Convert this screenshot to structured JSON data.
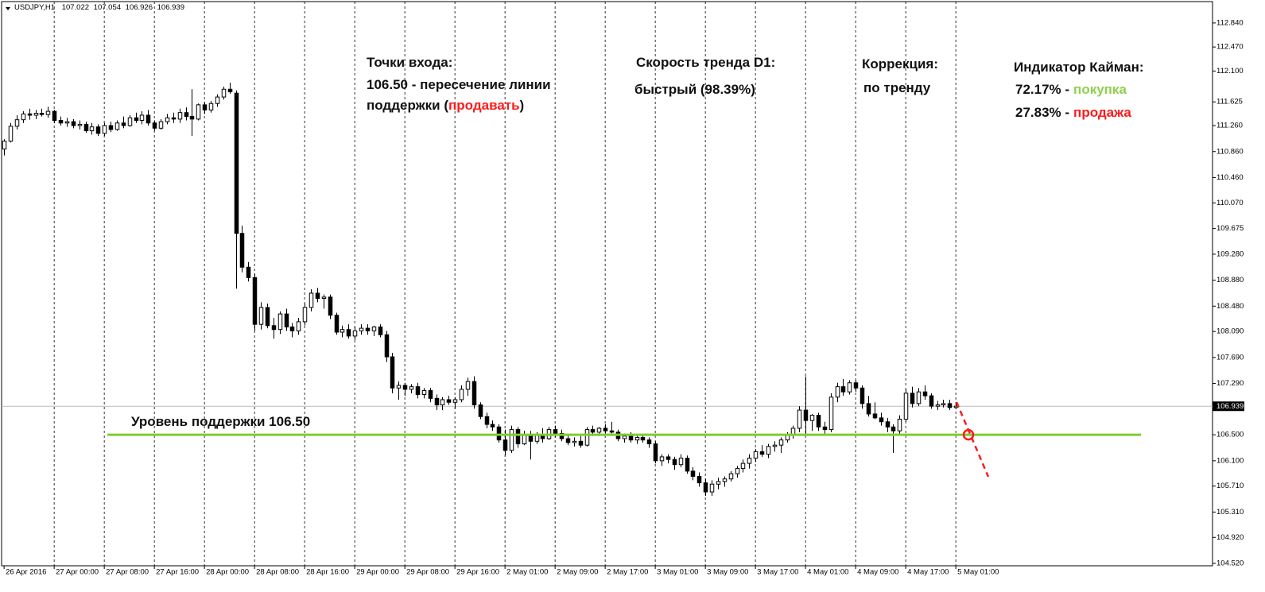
{
  "chart_data": {
    "type": "candlestick",
    "symbol": "USDJPY,H1",
    "header_prices": [
      "107.022",
      "107.054",
      "106.926",
      "106.939"
    ],
    "xlim": [
      -0.4,
      193
    ],
    "ylim": [
      104.483,
      113.169
    ],
    "yticks": [
      {
        "value": 112.84,
        "label": "112.840"
      },
      {
        "value": 112.47,
        "label": "112.470"
      },
      {
        "value": 112.1,
        "label": "112.100"
      },
      {
        "value": 111.625,
        "label": "111.625"
      },
      {
        "value": 111.26,
        "label": "111.260"
      },
      {
        "value": 110.86,
        "label": "110.860"
      },
      {
        "value": 110.46,
        "label": "110.460"
      },
      {
        "value": 110.07,
        "label": "110.070"
      },
      {
        "value": 109.675,
        "label": "109.675"
      },
      {
        "value": 109.28,
        "label": "109.280"
      },
      {
        "value": 108.88,
        "label": "108.880"
      },
      {
        "value": 108.48,
        "label": "108.480"
      },
      {
        "value": 108.09,
        "label": "108.090"
      },
      {
        "value": 107.69,
        "label": "107.690"
      },
      {
        "value": 107.29,
        "label": "107.290"
      },
      {
        "value": 106.5,
        "label": "106.500"
      },
      {
        "value": 106.1,
        "label": "106.100"
      },
      {
        "value": 105.71,
        "label": "105.710"
      },
      {
        "value": 105.31,
        "label": "105.310"
      },
      {
        "value": 104.92,
        "label": "104.920"
      },
      {
        "value": 104.52,
        "label": "104.520"
      }
    ],
    "xticks": [
      {
        "value": 0,
        "label": "26 Apr 2016"
      },
      {
        "value": 8,
        "label": "27 Apr 00:00"
      },
      {
        "value": 16,
        "label": "27 Apr 08:00"
      },
      {
        "value": 24,
        "label": "27 Apr 16:00"
      },
      {
        "value": 32,
        "label": "28 Apr 00:00"
      },
      {
        "value": 40,
        "label": "28 Apr 08:00"
      },
      {
        "value": 48,
        "label": "28 Apr 16:00"
      },
      {
        "value": 56,
        "label": "29 Apr 00:00"
      },
      {
        "value": 64,
        "label": "29 Apr 08:00"
      },
      {
        "value": 72,
        "label": "29 Apr 16:00"
      },
      {
        "value": 80,
        "label": "2 May 01:00"
      },
      {
        "value": 88,
        "label": "2 May 09:00"
      },
      {
        "value": 96,
        "label": "2 May 17:00"
      },
      {
        "value": 104,
        "label": "3 May 01:00"
      },
      {
        "value": 112,
        "label": "3 May 09:00"
      },
      {
        "value": 120,
        "label": "3 May 17:00"
      },
      {
        "value": 128,
        "label": "4 May 01:00"
      },
      {
        "value": 136,
        "label": "4 May 09:00"
      },
      {
        "value": 144,
        "label": "4 May 17:00"
      },
      {
        "value": 152,
        "label": "5 May 01:00"
      }
    ],
    "last_price": {
      "value": 106.939,
      "label": "106.939"
    },
    "support": {
      "value": 106.5,
      "label": "Уровень поддержки 106.50",
      "color": "#7fcc33"
    },
    "candles": [
      [
        110.9,
        111.05,
        110.8,
        111.02
      ],
      [
        111.02,
        111.3,
        111.0,
        111.25
      ],
      [
        111.25,
        111.42,
        111.2,
        111.35
      ],
      [
        111.35,
        111.48,
        111.3,
        111.44
      ],
      [
        111.44,
        111.52,
        111.35,
        111.42
      ],
      [
        111.42,
        111.5,
        111.36,
        111.45
      ],
      [
        111.45,
        111.52,
        111.4,
        111.43
      ],
      [
        111.43,
        111.55,
        111.38,
        111.48
      ],
      [
        111.48,
        111.5,
        111.3,
        111.34
      ],
      [
        111.34,
        111.4,
        111.26,
        111.3
      ],
      [
        111.3,
        111.38,
        111.24,
        111.32
      ],
      [
        111.32,
        111.36,
        111.22,
        111.26
      ],
      [
        111.26,
        111.34,
        111.2,
        111.28
      ],
      [
        111.28,
        111.32,
        111.15,
        111.18
      ],
      [
        111.18,
        111.3,
        111.12,
        111.24
      ],
      [
        111.24,
        111.28,
        111.1,
        111.14
      ],
      [
        111.14,
        111.3,
        111.1,
        111.26
      ],
      [
        111.26,
        111.32,
        111.16,
        111.2
      ],
      [
        111.2,
        111.34,
        111.18,
        111.3
      ],
      [
        111.3,
        111.4,
        111.22,
        111.26
      ],
      [
        111.26,
        111.42,
        111.24,
        111.38
      ],
      [
        111.38,
        111.46,
        111.3,
        111.34
      ],
      [
        111.34,
        111.48,
        111.28,
        111.42
      ],
      [
        111.42,
        111.5,
        111.26,
        111.3
      ],
      [
        111.3,
        111.34,
        111.18,
        111.22
      ],
      [
        111.22,
        111.36,
        111.2,
        111.32
      ],
      [
        111.32,
        111.44,
        111.28,
        111.38
      ],
      [
        111.38,
        111.46,
        111.3,
        111.36
      ],
      [
        111.36,
        111.52,
        111.3,
        111.46
      ],
      [
        111.46,
        111.54,
        111.34,
        111.4
      ],
      [
        111.4,
        111.82,
        111.1,
        111.36
      ],
      [
        111.36,
        111.6,
        111.34,
        111.58
      ],
      [
        111.58,
        111.62,
        111.44,
        111.5
      ],
      [
        111.5,
        111.64,
        111.46,
        111.6
      ],
      [
        111.6,
        111.74,
        111.55,
        111.7
      ],
      [
        111.7,
        111.86,
        111.66,
        111.82
      ],
      [
        111.82,
        111.92,
        111.75,
        111.78
      ],
      [
        111.76,
        111.8,
        108.75,
        109.6
      ],
      [
        109.6,
        109.72,
        109.0,
        109.08
      ],
      [
        109.08,
        109.16,
        108.86,
        108.92
      ],
      [
        108.92,
        108.98,
        108.1,
        108.2
      ],
      [
        108.2,
        108.54,
        108.12,
        108.46
      ],
      [
        108.46,
        108.52,
        108.14,
        108.18
      ],
      [
        108.18,
        108.3,
        107.98,
        108.12
      ],
      [
        108.12,
        108.4,
        108.05,
        108.36
      ],
      [
        108.36,
        108.44,
        108.1,
        108.16
      ],
      [
        108.16,
        108.22,
        108.0,
        108.1
      ],
      [
        108.1,
        108.3,
        108.04,
        108.24
      ],
      [
        108.24,
        108.52,
        108.18,
        108.46
      ],
      [
        108.46,
        108.74,
        108.4,
        108.68
      ],
      [
        108.68,
        108.76,
        108.54,
        108.6
      ],
      [
        108.6,
        108.66,
        108.44,
        108.62
      ],
      [
        108.62,
        108.66,
        108.28,
        108.34
      ],
      [
        108.34,
        108.38,
        108.04,
        108.08
      ],
      [
        108.08,
        108.18,
        108.0,
        108.12
      ],
      [
        108.12,
        108.2,
        107.98,
        108.02
      ],
      [
        108.02,
        108.16,
        107.96,
        108.1
      ],
      [
        108.1,
        108.2,
        108.04,
        108.14
      ],
      [
        108.14,
        108.2,
        108.04,
        108.1
      ],
      [
        108.1,
        108.18,
        108.02,
        108.16
      ],
      [
        108.16,
        108.2,
        108.0,
        108.04
      ],
      [
        108.04,
        108.1,
        107.62,
        107.7
      ],
      [
        107.7,
        107.76,
        107.14,
        107.22
      ],
      [
        107.22,
        107.32,
        107.04,
        107.26
      ],
      [
        107.26,
        107.3,
        107.1,
        107.2
      ],
      [
        107.2,
        107.28,
        107.14,
        107.24
      ],
      [
        107.24,
        107.3,
        107.06,
        107.12
      ],
      [
        107.12,
        107.22,
        107.06,
        107.18
      ],
      [
        107.18,
        107.22,
        107.0,
        107.06
      ],
      [
        107.06,
        107.12,
        106.88,
        106.96
      ],
      [
        106.96,
        107.08,
        106.88,
        107.04
      ],
      [
        107.04,
        107.1,
        106.96,
        107.0
      ],
      [
        107.0,
        107.08,
        106.9,
        107.04
      ],
      [
        107.04,
        107.26,
        107.0,
        107.2
      ],
      [
        107.2,
        107.38,
        107.1,
        107.32
      ],
      [
        107.32,
        107.4,
        106.9,
        106.96
      ],
      [
        106.96,
        107.0,
        106.74,
        106.78
      ],
      [
        106.78,
        106.84,
        106.6,
        106.66
      ],
      [
        106.66,
        106.72,
        106.56,
        106.62
      ],
      [
        106.62,
        106.66,
        106.38,
        106.42
      ],
      [
        106.42,
        106.58,
        106.18,
        106.26
      ],
      [
        106.26,
        106.64,
        106.22,
        106.58
      ],
      [
        106.58,
        106.62,
        106.3,
        106.36
      ],
      [
        106.36,
        106.56,
        106.34,
        106.5
      ],
      [
        106.5,
        106.56,
        106.12,
        106.4
      ],
      [
        106.4,
        106.54,
        106.36,
        106.5
      ],
      [
        106.5,
        106.6,
        106.38,
        106.44
      ],
      [
        106.44,
        106.62,
        106.42,
        106.58
      ],
      [
        106.58,
        106.64,
        106.46,
        106.52
      ],
      [
        106.52,
        106.58,
        106.4,
        106.44
      ],
      [
        106.44,
        106.5,
        106.34,
        106.38
      ],
      [
        106.38,
        106.46,
        106.32,
        106.4
      ],
      [
        106.4,
        106.48,
        106.3,
        106.34
      ],
      [
        106.34,
        106.62,
        106.32,
        106.58
      ],
      [
        106.58,
        106.64,
        106.48,
        106.54
      ],
      [
        106.54,
        106.62,
        106.48,
        106.6
      ],
      [
        106.6,
        106.66,
        106.5,
        106.56
      ],
      [
        106.56,
        106.7,
        106.52,
        106.54
      ],
      [
        106.54,
        106.58,
        106.4,
        106.44
      ],
      [
        106.44,
        106.52,
        106.38,
        106.48
      ],
      [
        106.48,
        106.54,
        106.38,
        106.42
      ],
      [
        106.42,
        106.5,
        106.36,
        106.46
      ],
      [
        106.46,
        106.5,
        106.38,
        106.42
      ],
      [
        106.42,
        106.46,
        106.3,
        106.36
      ],
      [
        106.36,
        106.4,
        106.06,
        106.1
      ],
      [
        106.1,
        106.2,
        106.02,
        106.16
      ],
      [
        106.16,
        106.2,
        106.06,
        106.12
      ],
      [
        106.12,
        106.16,
        105.96,
        106.04
      ],
      [
        106.04,
        106.2,
        106.0,
        106.14
      ],
      [
        106.14,
        106.18,
        105.9,
        105.94
      ],
      [
        105.94,
        106.0,
        105.8,
        105.86
      ],
      [
        105.86,
        105.92,
        105.7,
        105.76
      ],
      [
        105.76,
        105.82,
        105.56,
        105.62
      ],
      [
        105.62,
        105.8,
        105.56,
        105.74
      ],
      [
        105.74,
        105.84,
        105.66,
        105.78
      ],
      [
        105.78,
        105.86,
        105.7,
        105.82
      ],
      [
        105.82,
        105.94,
        105.78,
        105.9
      ],
      [
        105.9,
        106.02,
        105.84,
        105.98
      ],
      [
        105.98,
        106.12,
        105.92,
        106.06
      ],
      [
        106.06,
        106.2,
        105.98,
        106.14
      ],
      [
        106.14,
        106.28,
        106.08,
        106.24
      ],
      [
        106.24,
        106.34,
        106.16,
        106.2
      ],
      [
        106.2,
        106.36,
        106.14,
        106.32
      ],
      [
        106.32,
        106.4,
        106.24,
        106.34
      ],
      [
        106.34,
        106.46,
        106.22,
        106.42
      ],
      [
        106.42,
        106.54,
        106.38,
        106.5
      ],
      [
        106.5,
        106.64,
        106.44,
        106.6
      ],
      [
        106.6,
        106.94,
        106.54,
        106.88
      ],
      [
        106.88,
        107.4,
        106.5,
        106.72
      ],
      [
        106.72,
        106.82,
        106.56,
        106.8
      ],
      [
        106.8,
        106.84,
        106.56,
        106.62
      ],
      [
        106.62,
        106.7,
        106.5,
        106.58
      ],
      [
        106.58,
        107.14,
        106.54,
        107.08
      ],
      [
        107.08,
        107.3,
        107.0,
        107.24
      ],
      [
        107.24,
        107.36,
        107.1,
        107.16
      ],
      [
        107.16,
        107.34,
        107.12,
        107.3
      ],
      [
        107.3,
        107.34,
        107.16,
        107.22
      ],
      [
        107.22,
        107.26,
        106.9,
        106.98
      ],
      [
        106.98,
        107.1,
        106.78,
        106.82
      ],
      [
        106.82,
        107.0,
        106.74,
        106.76
      ],
      [
        106.76,
        106.84,
        106.64,
        106.7
      ],
      [
        106.7,
        106.76,
        106.54,
        106.62
      ],
      [
        106.62,
        106.66,
        106.22,
        106.56
      ],
      [
        106.56,
        106.8,
        106.5,
        106.74
      ],
      [
        106.74,
        107.2,
        106.7,
        107.14
      ],
      [
        107.14,
        107.24,
        106.92,
        106.98
      ],
      [
        106.98,
        107.22,
        106.94,
        107.16
      ],
      [
        107.16,
        107.26,
        107.04,
        107.1
      ],
      [
        107.1,
        107.14,
        106.9,
        106.94
      ],
      [
        106.94,
        107.02,
        106.88,
        106.96
      ],
      [
        106.96,
        107.04,
        106.92,
        106.98
      ],
      [
        106.98,
        107.04,
        106.88,
        106.92
      ],
      [
        106.92,
        106.98,
        106.9,
        106.94
      ]
    ],
    "annotations": {
      "entry_title": "Точки входа:",
      "entry_line1": "106.50 - пересечение линии",
      "entry_line2_a": "поддержки (",
      "entry_line2_b": "продавать",
      "entry_line2_c": ")",
      "speed_title": "Скорость тренда D1:",
      "speed_value": "быстрый (98.39%)",
      "correction_title": "Коррекция:",
      "correction_value": "по тренду",
      "kayman_title": "Индикатор Кайман:",
      "buy_pct": "72.17% -",
      "buy_label": "покупка",
      "sell_pct": "27.83% -",
      "sell_label": "продажа"
    }
  }
}
